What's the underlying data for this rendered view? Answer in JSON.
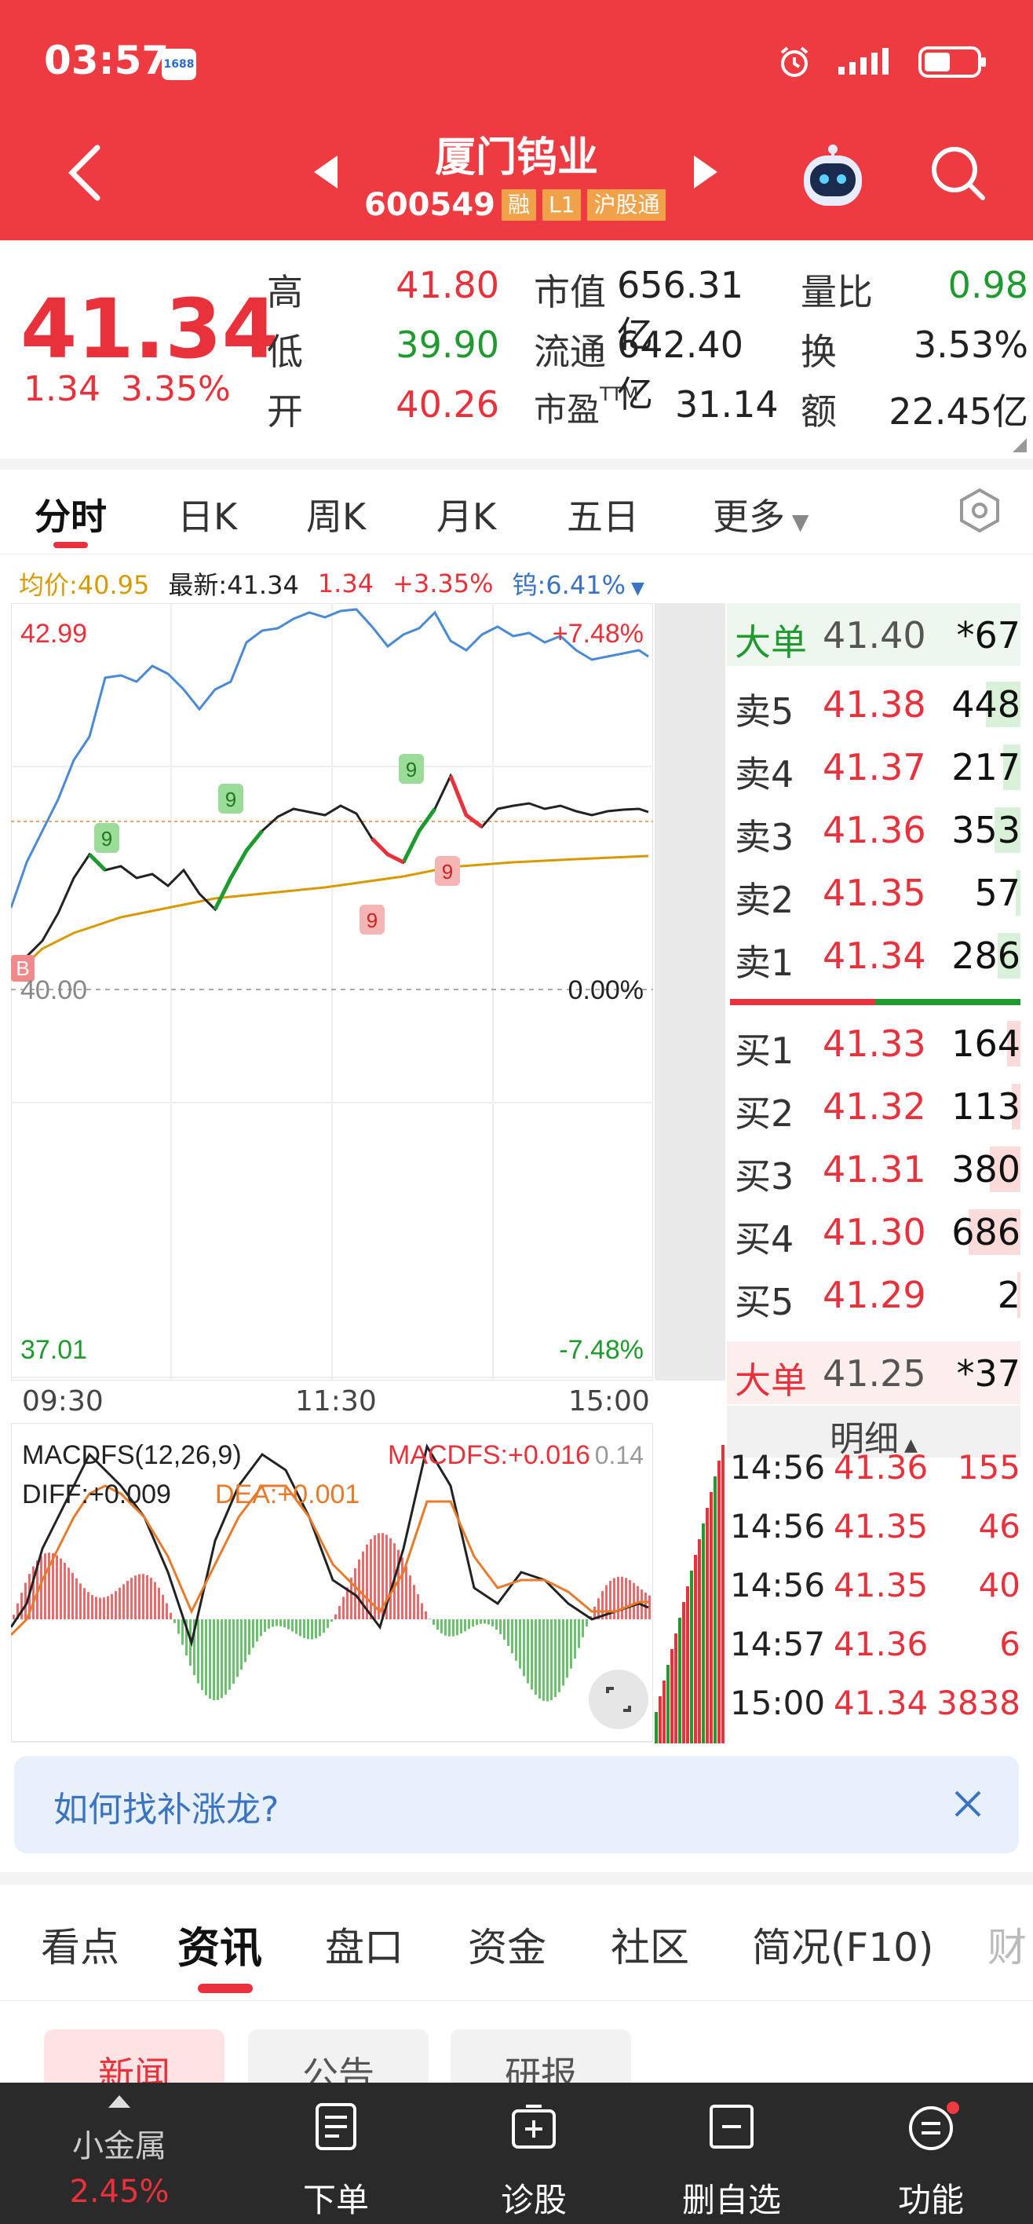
{
  "status_bar": {
    "time": "03:57",
    "app_badge": "1688"
  },
  "header": {
    "title": "厦门钨业",
    "code": "600549",
    "tags": [
      "融",
      "L1",
      "沪股通"
    ]
  },
  "quote": {
    "price": "41.34",
    "change": "1.34",
    "change_pct": "3.35%",
    "stats": [
      {
        "label": "高",
        "value": "41.80",
        "color": "#e8313a"
      },
      {
        "label": "低",
        "value": "39.90",
        "color": "#1f9a2e"
      },
      {
        "label": "开",
        "value": "40.26",
        "color": "#e8313a"
      }
    ],
    "stats2": [
      {
        "label": "市值",
        "value": "656.31亿"
      },
      {
        "label": "流通",
        "value": "642.40亿"
      },
      {
        "label": "市盈TTM",
        "value": "31.14"
      }
    ],
    "stats3": [
      {
        "label": "量比",
        "value": "0.98",
        "color": "#1f9a2e"
      },
      {
        "label": "换",
        "value": "3.53%",
        "color": "#222"
      },
      {
        "label": "额",
        "value": "22.45亿",
        "color": "#222"
      }
    ]
  },
  "chart_tabs": [
    "分时",
    "日K",
    "周K",
    "月K",
    "五日",
    "更多"
  ],
  "info_line": {
    "avg": "均价:40.95",
    "latest_label": "最新:41.34",
    "change": "1.34",
    "change_pct": "+3.35%",
    "sector": "钨:6.41%"
  },
  "chart_labels": {
    "y_top": "42.99",
    "y_top_pct": "+7.48%",
    "y_mid": "40.00",
    "y_mid_pct": "0.00%",
    "y_bottom": "37.01",
    "y_bottom_pct": "-7.48%",
    "x_start": "09:30",
    "x_mid": "11:30",
    "x_end": "15:00",
    "macd_title": "MACDFS(12,26,9)",
    "macd_value": "MACDFS:+0.016",
    "macd_scale": "0.14",
    "diff": "DIFF:+0.009",
    "dea": "DEA:+0.001",
    "b_marker": "B",
    "nine": "9"
  },
  "chart_data": {
    "type": "line",
    "ylim": [
      37.01,
      42.99
    ],
    "series": [],
    "x": [
      "09:30",
      "11:30",
      "15:00"
    ],
    "price_path": [
      40.0,
      40.3,
      40.6,
      40.7,
      40.9,
      41.0,
      40.8,
      40.6,
      40.9,
      41.3,
      41.4,
      41.4,
      41.3,
      41.2,
      40.9,
      41.1,
      41.5,
      41.8,
      41.3,
      41.2,
      41.4,
      41.5,
      41.4,
      41.3,
      41.3,
      41.34
    ],
    "avg_path": [
      40.0,
      40.3,
      40.5,
      40.6,
      40.7,
      40.75,
      40.8,
      40.82,
      40.85,
      40.88,
      40.9,
      40.92,
      40.93,
      40.94,
      40.94,
      40.95
    ]
  },
  "order_book": {
    "big_top": {
      "label": "大单",
      "price": "41.40",
      "vol": "*67"
    },
    "sells": [
      {
        "label": "卖5",
        "price": "41.38",
        "vol": "448",
        "ratio": 0.4
      },
      {
        "label": "卖4",
        "price": "41.37",
        "vol": "217",
        "ratio": 0.2
      },
      {
        "label": "卖3",
        "price": "41.36",
        "vol": "353",
        "ratio": 0.3
      },
      {
        "label": "卖2",
        "price": "41.35",
        "vol": "57",
        "ratio": 0.05
      },
      {
        "label": "卖1",
        "price": "41.34",
        "vol": "286",
        "ratio": 0.26
      }
    ],
    "buys": [
      {
        "label": "买1",
        "price": "41.33",
        "vol": "164",
        "ratio": 0.15
      },
      {
        "label": "买2",
        "price": "41.32",
        "vol": "113",
        "ratio": 0.1
      },
      {
        "label": "买3",
        "price": "41.31",
        "vol": "380",
        "ratio": 0.35
      },
      {
        "label": "买4",
        "price": "41.30",
        "vol": "686",
        "ratio": 0.6
      },
      {
        "label": "买5",
        "price": "41.29",
        "vol": "2",
        "ratio": 0.0
      }
    ],
    "big_bottom": {
      "label": "大单",
      "price": "41.25",
      "vol": "*37"
    },
    "detail_label": "明细"
  },
  "ticks": [
    {
      "time": "14:56",
      "price": "41.36",
      "vol": "155"
    },
    {
      "time": "14:56",
      "price": "41.35",
      "vol": "46"
    },
    {
      "time": "14:56",
      "price": "41.35",
      "vol": "40"
    },
    {
      "time": "14:57",
      "price": "41.36",
      "vol": "6"
    },
    {
      "time": "15:00",
      "price": "41.34",
      "vol": "3838"
    }
  ],
  "promo": {
    "text": "如何找补涨龙?"
  },
  "news_tabs": [
    "看点",
    "资讯",
    "盘口",
    "资金",
    "社区",
    "简况(F10)",
    "财"
  ],
  "sub_tabs": [
    "新闻",
    "公告",
    "研报"
  ],
  "bottom_bar": {
    "sector_name": "小金属",
    "sector_pct": "2.45%",
    "items": [
      "下单",
      "诊股",
      "删自选",
      "功能"
    ]
  }
}
